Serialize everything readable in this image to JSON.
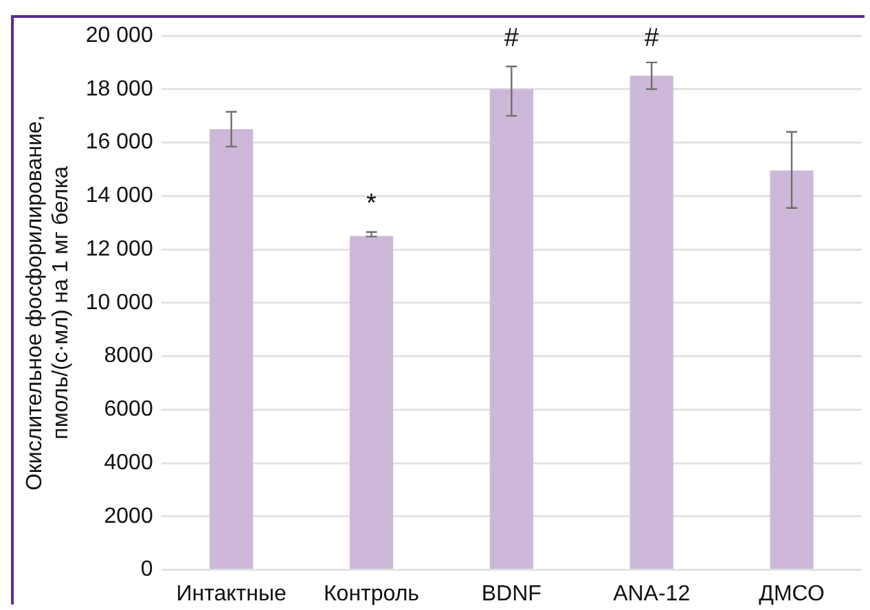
{
  "chart_data": {
    "type": "bar",
    "ylabel": "Окислительное фосфорилирование,\nпмоль/(с·мл) на 1 мг белка",
    "categories": [
      "Интактные",
      "Контроль",
      "BDNF",
      "ANA-12",
      "ДМСО"
    ],
    "values": [
      16500,
      12500,
      18000,
      18500,
      14950
    ],
    "errors": [
      [
        15850,
        17150
      ],
      [
        12480,
        12650
      ],
      [
        17000,
        18850
      ],
      [
        18000,
        19000
      ],
      [
        13550,
        16400
      ]
    ],
    "color": "#cdb8d9",
    "ylim": [
      0,
      20000
    ],
    "yticks": [
      0,
      2000,
      4000,
      6000,
      8000,
      {
        "value": 10000,
        "label": "10 000"
      },
      {
        "value": 12000,
        "label": "12 000"
      },
      {
        "value": 14000,
        "label": "14 000"
      },
      {
        "value": 16000,
        "label": "16 000"
      },
      {
        "value": 18000,
        "label": "18 000"
      },
      {
        "value": 20000,
        "label": "20 000"
      }
    ],
    "grid": "y",
    "annotations": [
      {
        "text": "*",
        "x": "Контроль",
        "y": 12650
      },
      {
        "text": "#",
        "x": "BDNF",
        "y": 18850
      },
      {
        "text": "#",
        "x": "ANA-12",
        "y": 19000
      }
    ]
  }
}
